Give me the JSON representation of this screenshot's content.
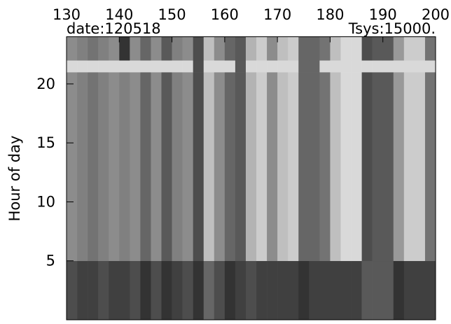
{
  "chart_data": {
    "type": "heatmap",
    "title_left": "date:120518",
    "title_right": "Tsys:15000.",
    "ylabel": "Hour of day",
    "x": [
      130,
      132,
      134,
      136,
      138,
      140,
      142,
      144,
      146,
      148,
      150,
      152,
      154,
      156,
      158,
      160,
      162,
      164,
      166,
      168,
      170,
      172,
      174,
      176,
      178,
      180,
      182,
      184,
      186,
      188,
      190,
      192,
      194,
      196,
      198,
      200
    ],
    "y": [
      0,
      5,
      21,
      22,
      24
    ],
    "values": [
      [
        0.3,
        0.25,
        0.25,
        0.3,
        0.25,
        0.25,
        0.3,
        0.2,
        0.3,
        0.2,
        0.25,
        0.3,
        0.2,
        0.4,
        0.3,
        0.2,
        0.25,
        0.3,
        0.25,
        0.25,
        0.25,
        0.25,
        0.2,
        0.25,
        0.25,
        0.25,
        0.25,
        0.25,
        0.35,
        0.35,
        0.35,
        0.2,
        0.25,
        0.25,
        0.25
      ],
      [
        0.55,
        0.5,
        0.45,
        0.5,
        0.55,
        0.5,
        0.55,
        0.4,
        0.55,
        0.35,
        0.5,
        0.55,
        0.3,
        0.75,
        0.55,
        0.4,
        0.35,
        0.7,
        0.8,
        0.55,
        0.75,
        0.8,
        0.4,
        0.4,
        0.45,
        0.75,
        0.85,
        0.85,
        0.3,
        0.35,
        0.35,
        0.6,
        0.8,
        0.8,
        0.45
      ],
      [
        0.85,
        0.85,
        0.85,
        0.85,
        0.85,
        0.85,
        0.85,
        0.85,
        0.85,
        0.85,
        0.85,
        0.85,
        0.3,
        0.85,
        0.85,
        0.85,
        0.35,
        0.85,
        0.85,
        0.85,
        0.85,
        0.85,
        0.4,
        0.4,
        0.85,
        0.85,
        0.85,
        0.85,
        0.85,
        0.85,
        0.85,
        0.85,
        0.85,
        0.85,
        0.85
      ],
      [
        0.55,
        0.5,
        0.45,
        0.5,
        0.55,
        0.2,
        0.55,
        0.4,
        0.55,
        0.35,
        0.5,
        0.55,
        0.3,
        0.75,
        0.55,
        0.4,
        0.35,
        0.7,
        0.8,
        0.55,
        0.75,
        0.8,
        0.4,
        0.4,
        0.45,
        0.75,
        0.85,
        0.85,
        0.3,
        0.35,
        0.35,
        0.6,
        0.8,
        0.8,
        0.45
      ]
    ],
    "xlim": [
      130,
      200
    ],
    "xticks": [
      130,
      140,
      150,
      160,
      170,
      180,
      190,
      200
    ],
    "ylim": [
      0,
      24
    ],
    "yticks": [
      5,
      10,
      15,
      20
    ]
  }
}
